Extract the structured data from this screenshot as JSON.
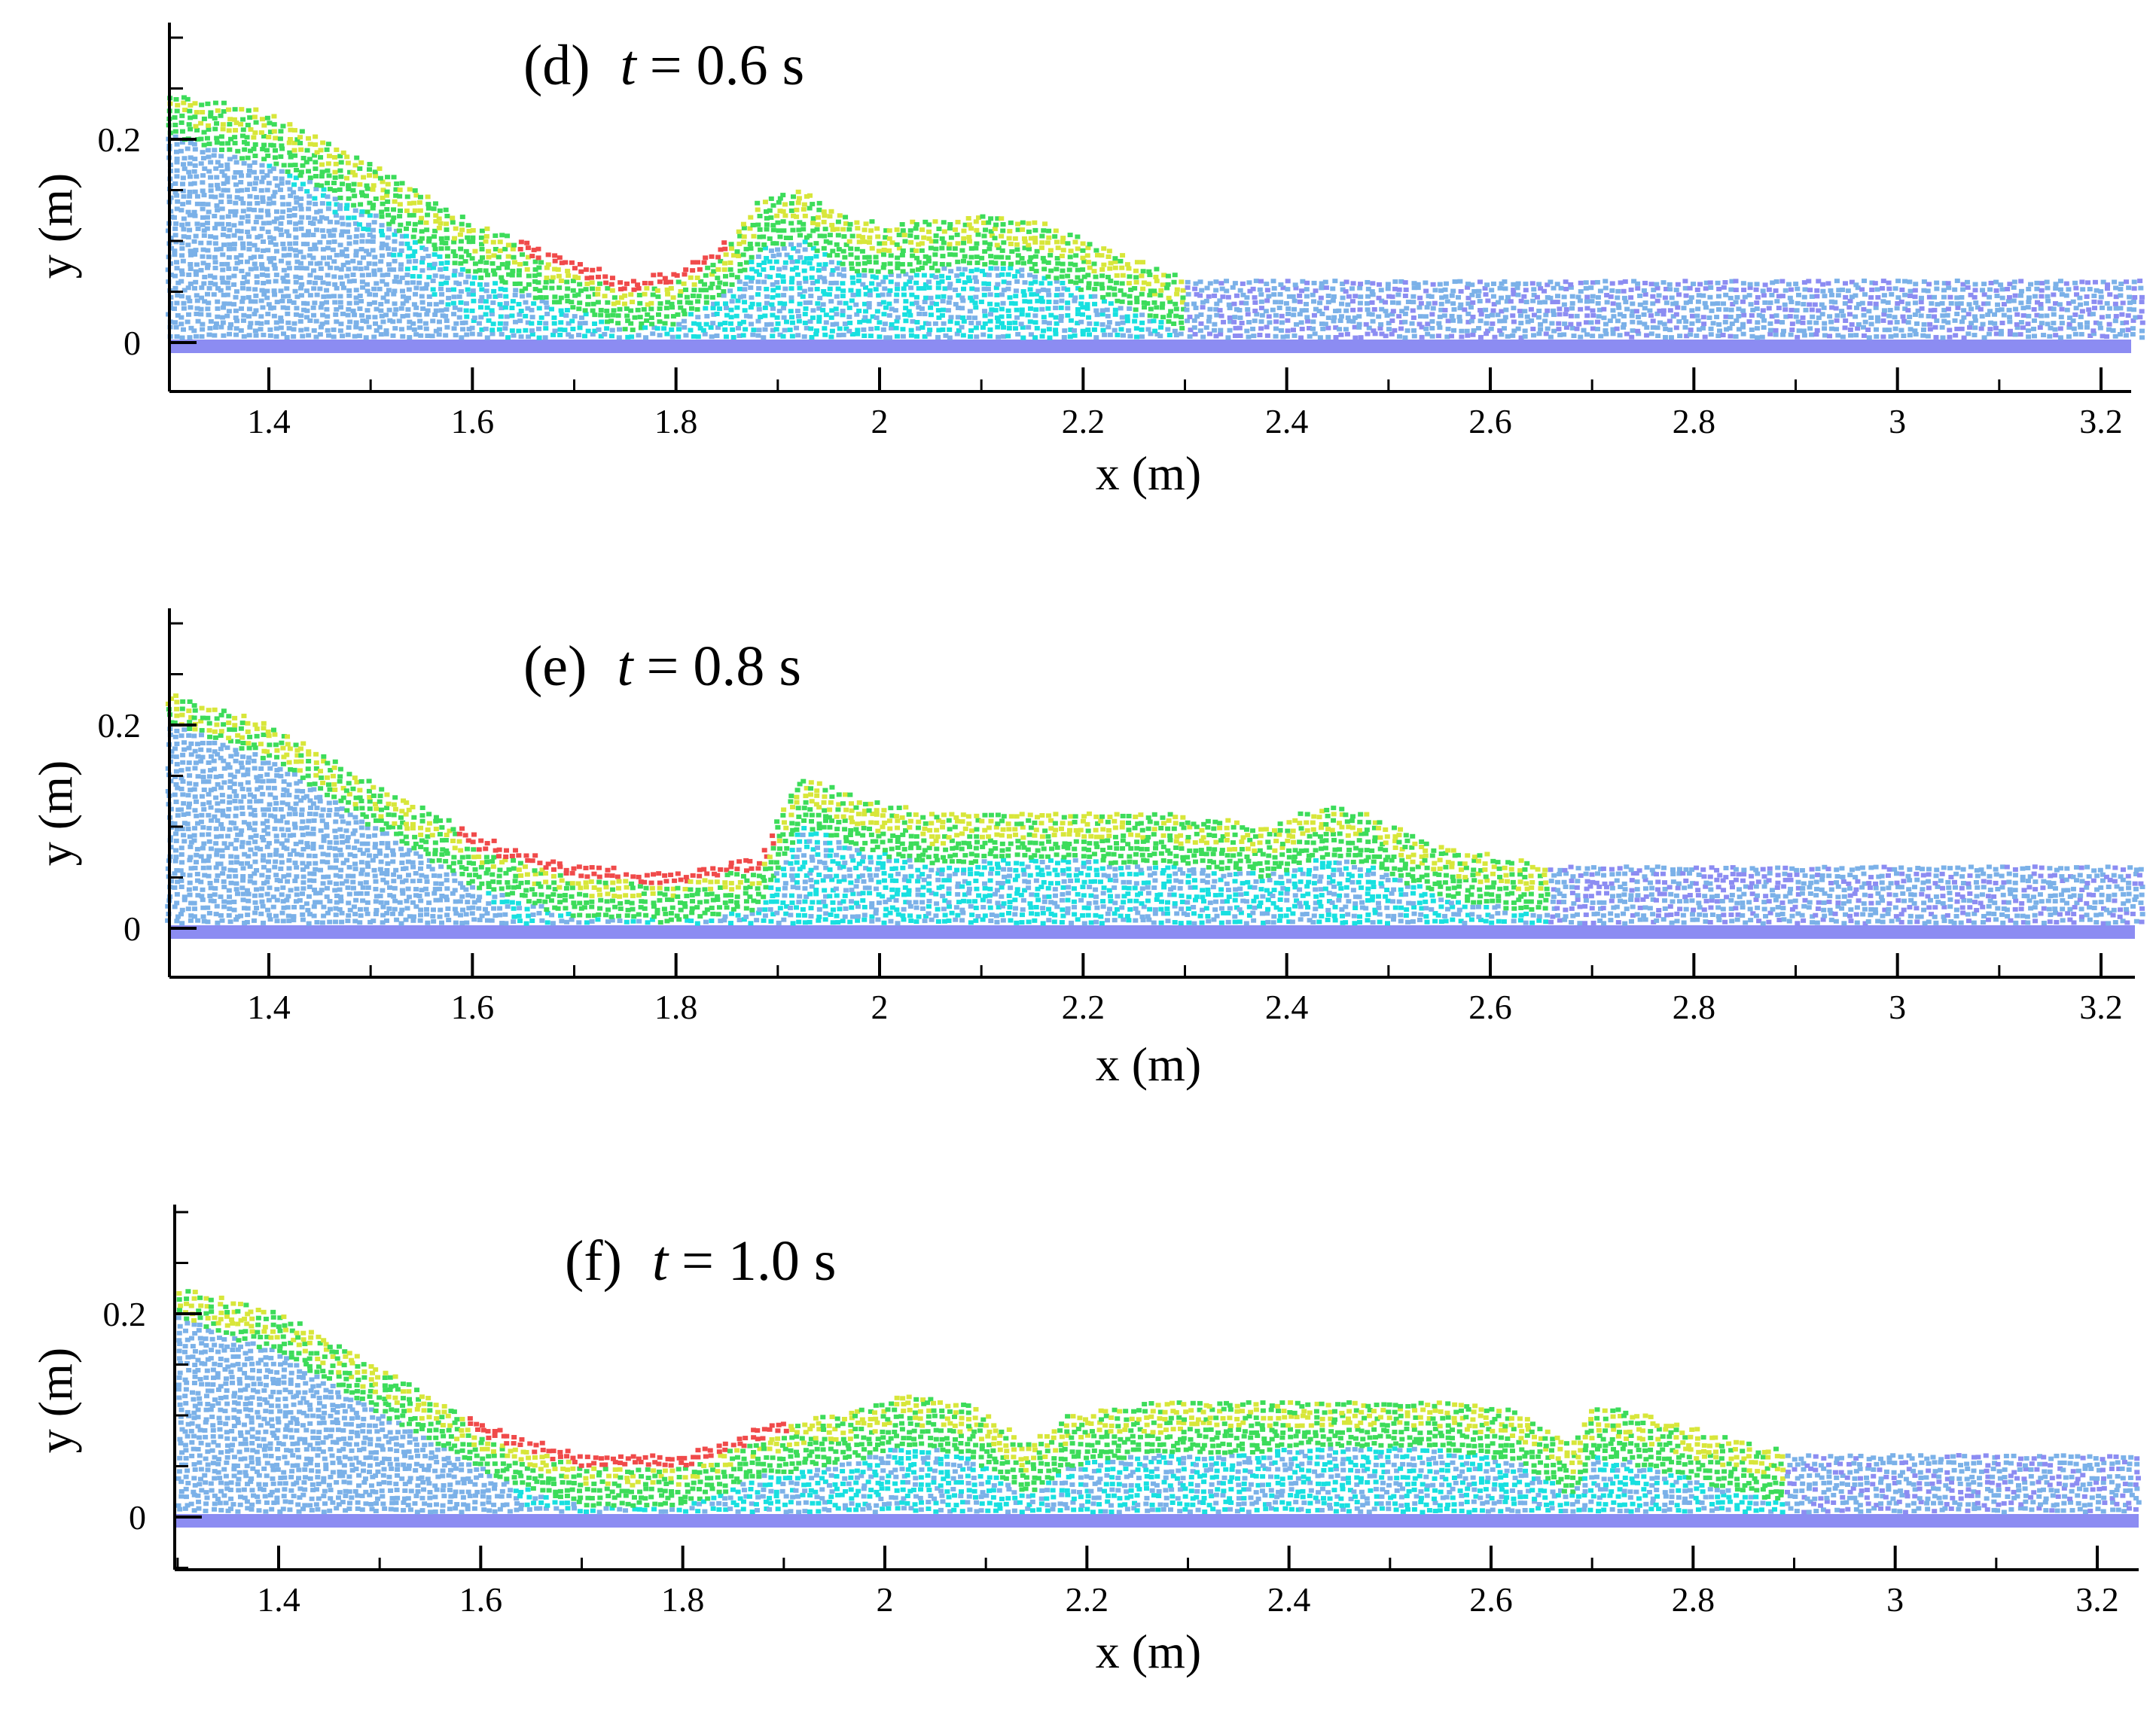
{
  "chart_data": [
    {
      "type": "scatter",
      "panel_label": "(d)",
      "time_symbol": "t",
      "time_value": "= 0.6 s",
      "xlabel": "x (m)",
      "ylabel": "y (m)",
      "xlim": [
        1.3,
        3.24
      ],
      "ylim": [
        -0.05,
        0.31
      ],
      "xticks": [
        "1.4",
        "1.6",
        "1.8",
        "2",
        "2.2",
        "2.4",
        "2.6",
        "2.8",
        "3",
        "3.2"
      ],
      "yticks": [
        "0",
        "0.2"
      ],
      "bed_y": 0.0,
      "downstream_depth": 0.06,
      "free_surface": [
        [
          1.3,
          0.245
        ],
        [
          1.4,
          0.225
        ],
        [
          1.5,
          0.175
        ],
        [
          1.6,
          0.115
        ],
        [
          1.7,
          0.08
        ],
        [
          1.75,
          0.06
        ],
        [
          1.8,
          0.07
        ],
        [
          1.85,
          0.1
        ],
        [
          1.88,
          0.14
        ],
        [
          1.92,
          0.15
        ],
        [
          1.97,
          0.12
        ],
        [
          2.0,
          0.115
        ],
        [
          2.05,
          0.12
        ],
        [
          2.1,
          0.125
        ],
        [
          2.15,
          0.12
        ],
        [
          2.2,
          0.1
        ],
        [
          2.25,
          0.08
        ],
        [
          2.3,
          0.06
        ],
        [
          3.24,
          0.06
        ]
      ],
      "core_boundary": [
        [
          1.3,
          0.205
        ],
        [
          1.4,
          0.17
        ],
        [
          1.5,
          0.1
        ],
        [
          1.55,
          0.05
        ],
        [
          1.6,
          0.015
        ],
        [
          1.63,
          0.0
        ]
      ],
      "colors": {
        "core": "#7bb1e8",
        "bed": "#8c8cf2",
        "mid": "#18e0e0",
        "green": "#3cdc5a",
        "yellow": "#d8e63a",
        "red": "#f04a4a"
      }
    },
    {
      "type": "scatter",
      "panel_label": "(e)",
      "time_symbol": "t",
      "time_value": "= 0.8 s",
      "xlabel": "x (m)",
      "ylabel": "y (m)",
      "xlim": [
        1.3,
        3.24
      ],
      "ylim": [
        -0.05,
        0.31
      ],
      "xticks": [
        "1.4",
        "1.6",
        "1.8",
        "2",
        "2.2",
        "2.4",
        "2.6",
        "2.8",
        "3",
        "3.2"
      ],
      "yticks": [
        "0",
        "0.2"
      ],
      "bed_y": 0.0,
      "downstream_depth": 0.06,
      "free_surface": [
        [
          1.3,
          0.23
        ],
        [
          1.4,
          0.2
        ],
        [
          1.5,
          0.14
        ],
        [
          1.6,
          0.09
        ],
        [
          1.7,
          0.06
        ],
        [
          1.8,
          0.055
        ],
        [
          1.88,
          0.07
        ],
        [
          1.92,
          0.15
        ],
        [
          1.97,
          0.13
        ],
        [
          2.05,
          0.11
        ],
        [
          2.1,
          0.115
        ],
        [
          2.2,
          0.115
        ],
        [
          2.3,
          0.11
        ],
        [
          2.38,
          0.1
        ],
        [
          2.44,
          0.12
        ],
        [
          2.48,
          0.11
        ],
        [
          2.55,
          0.08
        ],
        [
          2.6,
          0.07
        ],
        [
          2.67,
          0.06
        ],
        [
          3.24,
          0.06
        ]
      ],
      "core_boundary": [
        [
          1.3,
          0.2
        ],
        [
          1.4,
          0.165
        ],
        [
          1.5,
          0.1
        ],
        [
          1.6,
          0.04
        ],
        [
          1.65,
          0.0
        ]
      ],
      "colors": {
        "core": "#7bb1e8",
        "bed": "#8c8cf2",
        "mid": "#18e0e0",
        "green": "#3cdc5a",
        "yellow": "#d8e63a",
        "red": "#f04a4a"
      }
    },
    {
      "type": "scatter",
      "panel_label": "(f)",
      "time_symbol": "t",
      "time_value": "= 1.0 s",
      "xlabel": "x (m)",
      "ylabel": "y (m)",
      "xlim": [
        1.3,
        3.24
      ],
      "ylim": [
        -0.05,
        0.31
      ],
      "xticks": [
        "1.4",
        "1.6",
        "1.8",
        "2",
        "2.2",
        "2.4",
        "2.6",
        "2.8",
        "3",
        "3.2"
      ],
      "yticks": [
        "0",
        "0.2"
      ],
      "bed_y": 0.0,
      "downstream_depth": 0.06,
      "free_surface": [
        [
          1.3,
          0.225
        ],
        [
          1.4,
          0.2
        ],
        [
          1.5,
          0.145
        ],
        [
          1.6,
          0.09
        ],
        [
          1.7,
          0.06
        ],
        [
          1.8,
          0.06
        ],
        [
          1.88,
          0.09
        ],
        [
          1.95,
          0.1
        ],
        [
          2.02,
          0.12
        ],
        [
          2.08,
          0.11
        ],
        [
          2.14,
          0.07
        ],
        [
          2.18,
          0.1
        ],
        [
          2.25,
          0.11
        ],
        [
          2.4,
          0.115
        ],
        [
          2.55,
          0.115
        ],
        [
          2.62,
          0.105
        ],
        [
          2.68,
          0.07
        ],
        [
          2.7,
          0.11
        ],
        [
          2.75,
          0.1
        ],
        [
          2.82,
          0.08
        ],
        [
          2.9,
          0.06
        ],
        [
          3.24,
          0.06
        ]
      ],
      "core_boundary": [
        [
          1.3,
          0.195
        ],
        [
          1.4,
          0.16
        ],
        [
          1.5,
          0.1
        ],
        [
          1.6,
          0.045
        ],
        [
          1.66,
          0.0
        ]
      ],
      "colors": {
        "core": "#7bb1e8",
        "bed": "#8c8cf2",
        "mid": "#18e0e0",
        "green": "#3cdc5a",
        "yellow": "#d8e63a",
        "red": "#f04a4a"
      }
    }
  ]
}
